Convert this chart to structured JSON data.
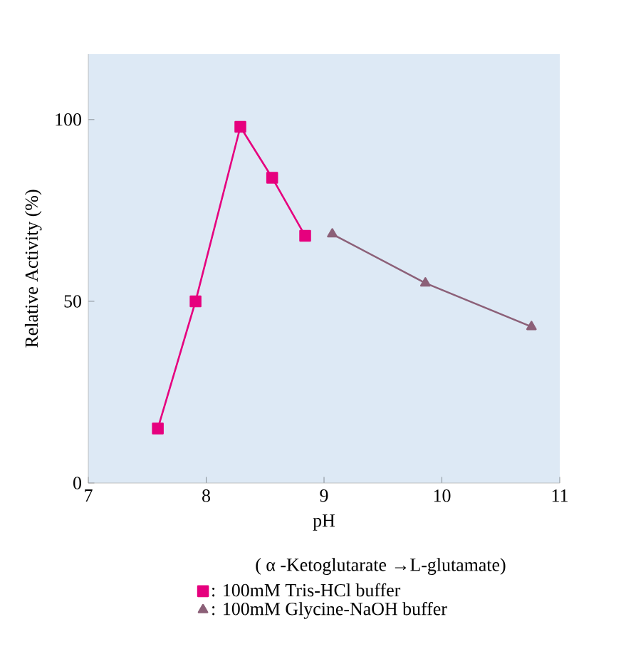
{
  "chart_data": {
    "type": "line",
    "xlabel": "pH",
    "ylabel": "Relative Activity (%)",
    "xlim": [
      7,
      11
    ],
    "xticks": [
      7,
      8,
      9,
      10,
      11
    ],
    "ylim": [
      0,
      118
    ],
    "yticks": [
      0,
      50,
      100
    ],
    "annotations": [
      "( α -Ketoglutarate →L-glutamate)"
    ],
    "legend": "bottom",
    "grid": false,
    "line_style": "solid",
    "series": [
      {
        "name": ": 100mM Tris-HCl buffer",
        "color": "#e6007e",
        "marker": "square",
        "x": [
          7.59,
          7.91,
          8.29,
          8.56,
          8.84
        ],
        "values": [
          15,
          50,
          98,
          84,
          68
        ]
      },
      {
        "name": ": 100mM Glycine-NaOH buffer",
        "color": "#8c6078",
        "marker": "triangle",
        "x": [
          9.07,
          9.86,
          10.76
        ],
        "values": [
          68.5,
          55,
          43
        ]
      }
    ]
  }
}
